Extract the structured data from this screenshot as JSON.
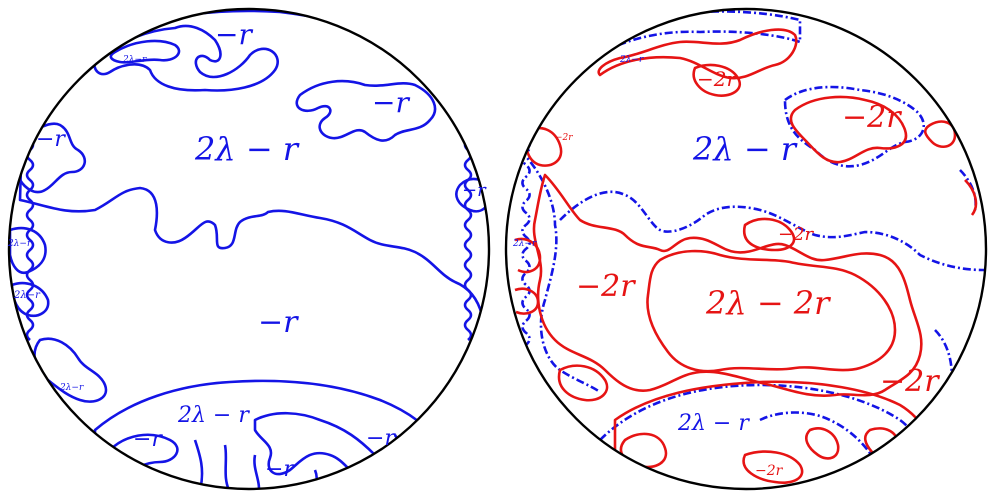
{
  "colors": {
    "outline": "#000000",
    "blue": "#1414e6",
    "red": "#e61414"
  },
  "left_panel": {
    "labels": {
      "top_minus_r": "−r",
      "upper_right_minus_r": "−r",
      "left_upper_minus_r": "−r",
      "right_minus_r": "−r",
      "main_2lambda": "2λ − r",
      "center_minus_r": "−r",
      "bottom_2lambda": "2λ − r",
      "bottom_left_minus_r": "−r",
      "bottom_right_minus_r": "−r",
      "bottom_center_minus_r": "−r",
      "small_top_2lambda": "2λ−r",
      "small_left1_2lambda": "2λ−r",
      "small_left2_2lambda": "2λ−r",
      "small_bottom_left_2lambda": "2λ−r"
    }
  },
  "right_panel": {
    "labels": {
      "top_minus_2r": "−2r",
      "upper_right_minus_2r": "−2r",
      "blue_2lambda_r": "2λ − r",
      "left_minus_2r": "−2r",
      "center_2lambda_2r": "2λ − 2r",
      "mid_minus_2r": "−2r",
      "right_minus_2r": "−2r",
      "bottom_2lambda_r": "2λ − r",
      "bottom_minus_2r": "−2r",
      "small_top_2lambda": "2λ−r",
      "small_left_2lambda": "2λ−r",
      "small_tiny_minus_2r": "−2r"
    }
  }
}
